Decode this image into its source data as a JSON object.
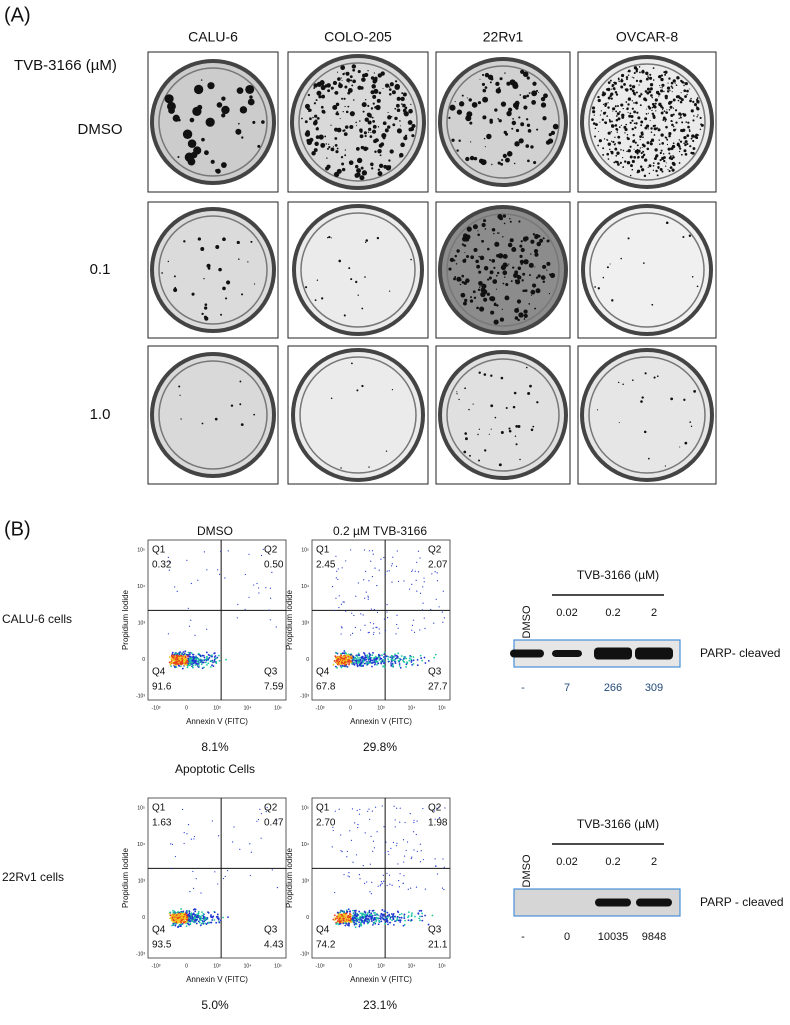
{
  "panel_a": {
    "label": "(A)",
    "treatment_label": "TVB-3166 (µM)",
    "columns": [
      "CALU-6",
      "COLO-205",
      "22Rv1",
      "OVCAR-8"
    ],
    "rows": [
      "DMSO",
      "0.1",
      "1.0"
    ]
  },
  "panel_b": {
    "label": "(B)",
    "conditions": [
      "DMSO",
      "0.2 µM TVB-3166"
    ],
    "y_axis_label": "Propidium Iodide",
    "x_axis_label": "Annexin V (FITC)",
    "yticks": [
      "10⁵",
      "10⁴",
      "10³",
      "0",
      "-10³"
    ],
    "xticks": [
      "-10³",
      "0",
      "10³",
      "10⁴",
      "10⁵"
    ],
    "apoptotic_label": "Apoptotic Cells",
    "cell_lines": [
      {
        "name": "CALU-6 cells",
        "plots": [
          {
            "quadrants": [
              {
                "label": "Q1",
                "value": "0.32"
              },
              {
                "label": "Q2",
                "value": "0.50"
              },
              {
                "label": "Q4",
                "value": "91.6"
              },
              {
                "label": "Q3",
                "value": "7.59"
              }
            ],
            "apoptotic": "8.1%"
          },
          {
            "quadrants": [
              {
                "label": "Q1",
                "value": "2.45"
              },
              {
                "label": "Q2",
                "value": "2.07"
              },
              {
                "label": "Q4",
                "value": "67.8"
              },
              {
                "label": "Q3",
                "value": "27.7"
              }
            ],
            "apoptotic": "29.8%"
          }
        ],
        "blot": {
          "title": "TVB-3166 (µM)",
          "lanes": [
            "DMSO",
            "0.02",
            "0.2",
            "2"
          ],
          "protein": "PARP- cleaved",
          "values": [
            "-",
            "7",
            "266",
            "309"
          ]
        }
      },
      {
        "name": "22Rv1 cells",
        "plots": [
          {
            "quadrants": [
              {
                "label": "Q1",
                "value": "1.63"
              },
              {
                "label": "Q2",
                "value": "0.47"
              },
              {
                "label": "Q4",
                "value": "93.5"
              },
              {
                "label": "Q3",
                "value": "4.43"
              }
            ],
            "apoptotic": "5.0%"
          },
          {
            "quadrants": [
              {
                "label": "Q1",
                "value": "2.70"
              },
              {
                "label": "Q2",
                "value": "1.98"
              },
              {
                "label": "Q4",
                "value": "74.2"
              },
              {
                "label": "Q3",
                "value": "21.1"
              }
            ],
            "apoptotic": "23.1%"
          }
        ],
        "blot": {
          "title": "TVB-3166 (µM)",
          "lanes": [
            "DMSO",
            "0.02",
            "0.2",
            "2"
          ],
          "protein": "PARP - cleaved",
          "values": [
            "-",
            "0",
            "10035",
            "9848"
          ]
        }
      }
    ]
  }
}
